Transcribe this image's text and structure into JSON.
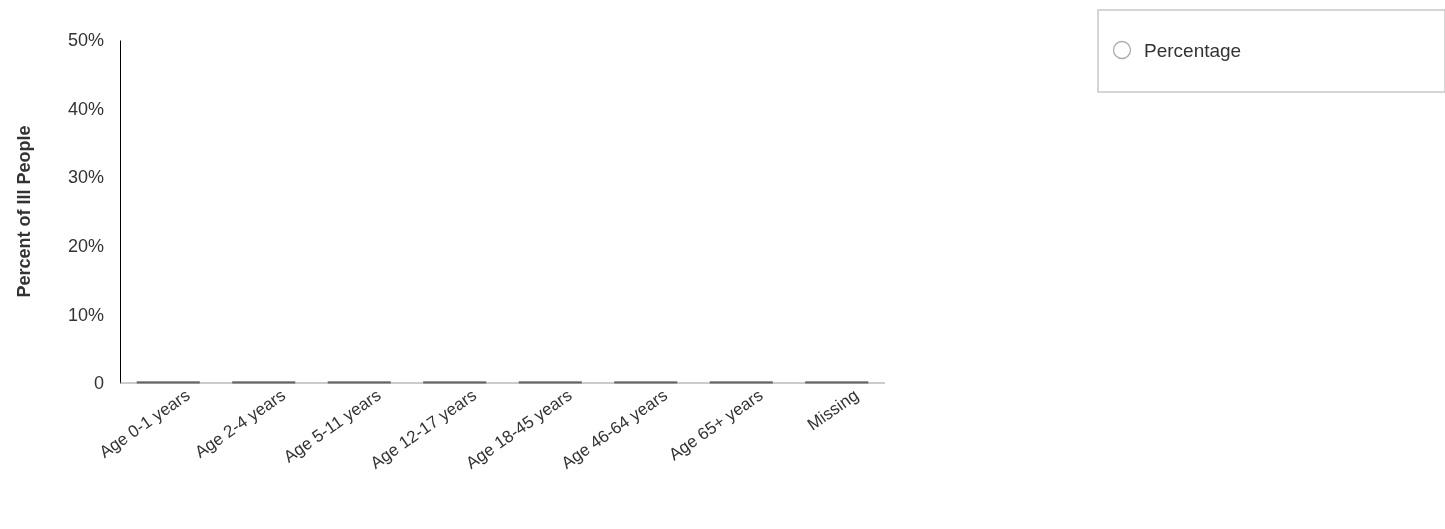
{
  "chart_data": {
    "type": "bar",
    "ylabel": "Percent of Ill People",
    "categories": [
      "Age 0-1 years",
      "Age 2-4 years",
      "Age 5-11 years",
      "Age 12-17 years",
      "Age 18-45 years",
      "Age 46-64 years",
      "Age 65+ years",
      "Missing"
    ],
    "series": [
      {
        "name": "Percentage",
        "color": "#aaaaaa",
        "values": [
          0,
          0,
          0,
          0,
          0,
          0,
          0,
          0
        ]
      }
    ],
    "ylim": [
      0,
      50
    ],
    "yticks": [
      0,
      {
        "value": 10,
        "label": "10%"
      },
      {
        "value": 20,
        "label": "20%"
      },
      {
        "value": 30,
        "label": "30%"
      },
      {
        "value": 40,
        "label": "40%"
      },
      {
        "value": 50,
        "label": "50%"
      }
    ],
    "grid": false,
    "legend": "top right"
  }
}
